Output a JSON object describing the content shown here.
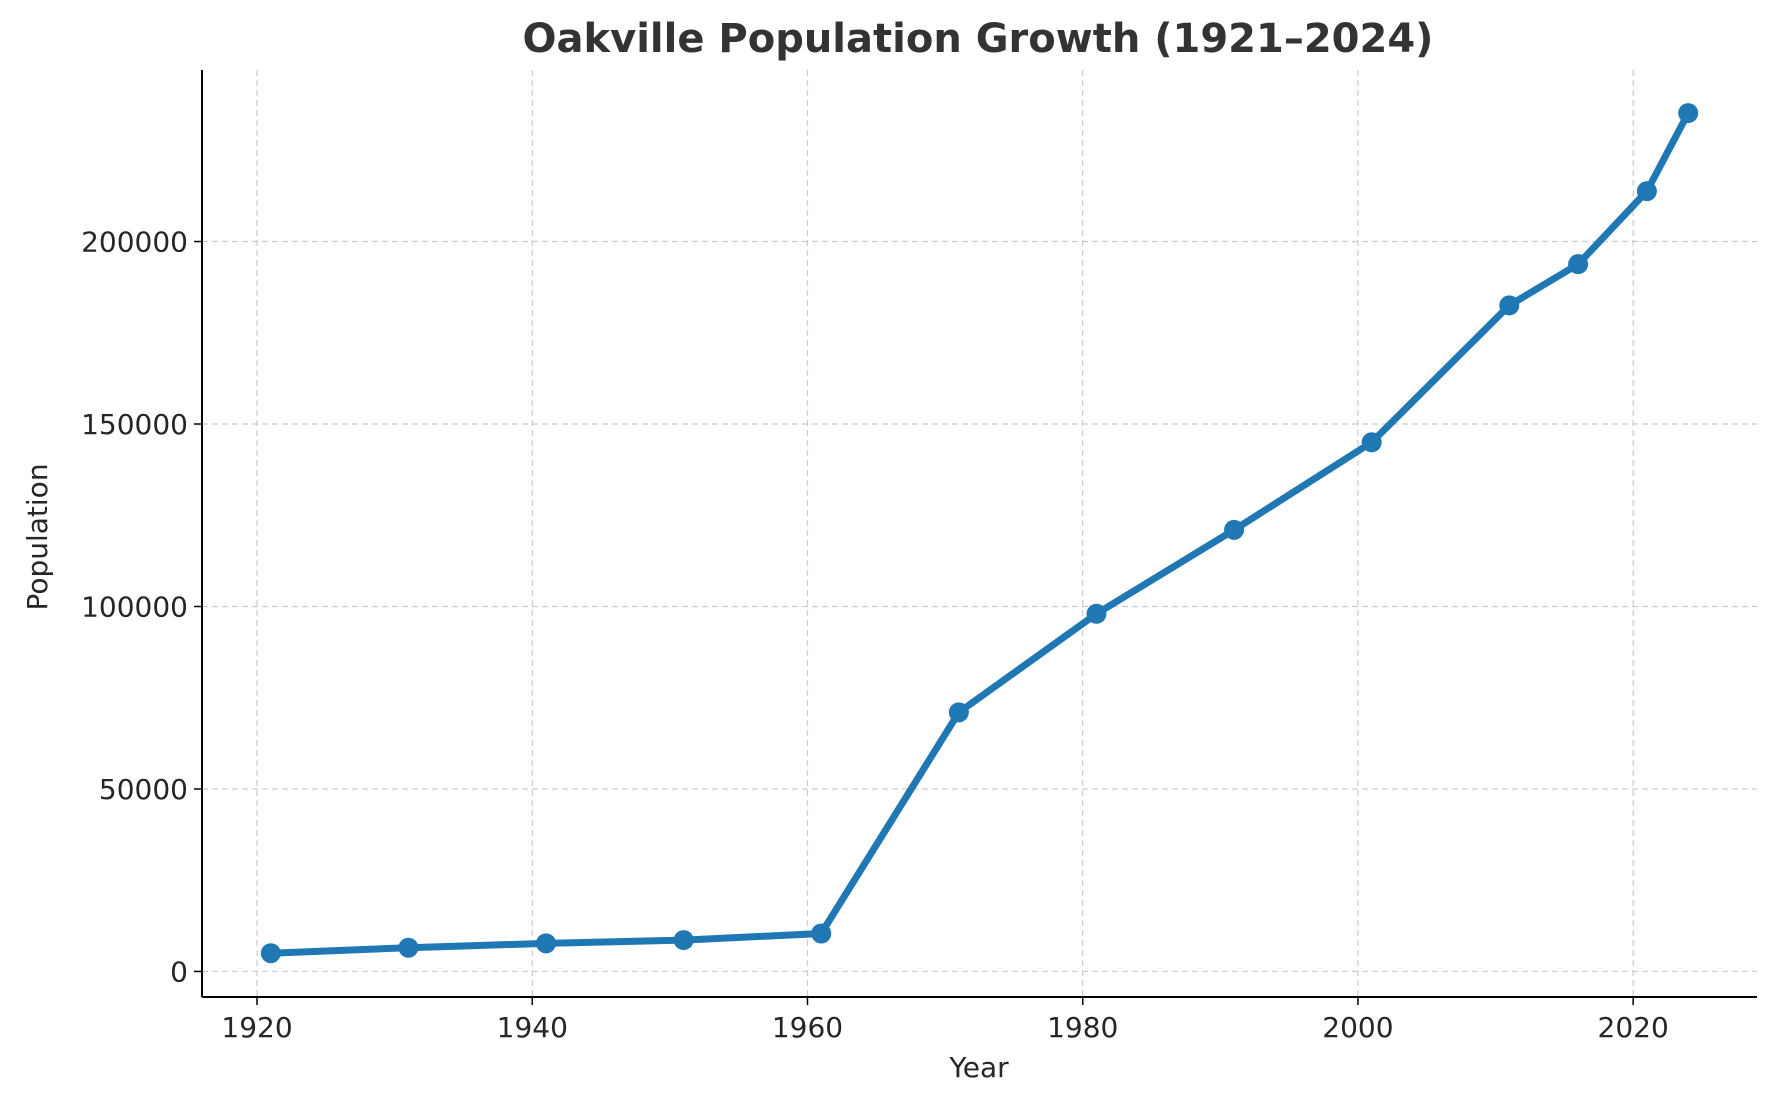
{
  "chart_data": {
    "type": "line",
    "title": "Oakville Population Growth (1921–2024)",
    "xlabel": "Year",
    "ylabel": "Population",
    "xlim": [
      1916,
      2029
    ],
    "ylim": [
      -7000,
      247000
    ],
    "xticks": [
      1920,
      1940,
      1960,
      1980,
      2000,
      2020
    ],
    "yticks": [
      0,
      50000,
      100000,
      150000,
      200000
    ],
    "grid": true,
    "line_color": "#1f77b4",
    "series": [
      {
        "x": [
          1921,
          1931,
          1941,
          1951,
          1961,
          1971,
          1981,
          1991,
          2001,
          2011,
          2016,
          2021,
          2024
        ],
        "values": [
          5000,
          6500,
          7700,
          8600,
          10400,
          71000,
          98000,
          121000,
          145000,
          182500,
          193800,
          213800,
          235200
        ]
      }
    ]
  }
}
